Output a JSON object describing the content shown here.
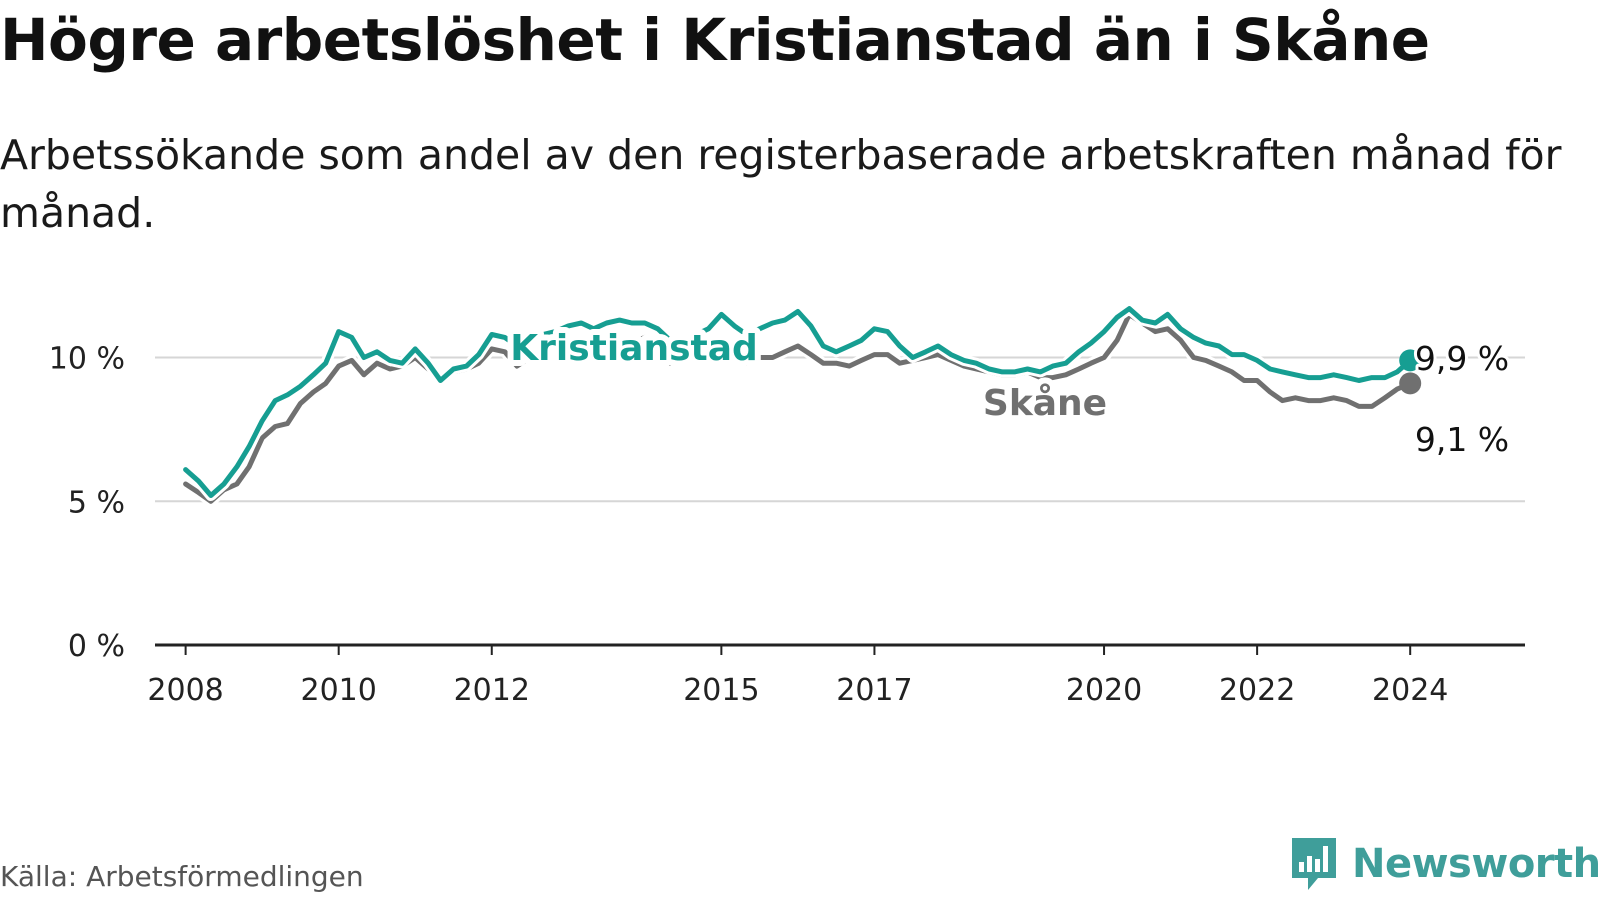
{
  "title": "Högre arbetslöshet i Kristianstad än i Skåne",
  "subtitle": "Arbetssökande som andel av den registerbaserade arbetskraften månad för månad.",
  "source": "Källa: Arbetsförmedlingen",
  "brand": {
    "name": "Newsworthy",
    "icon": "newsworthy-logo-icon",
    "color": "#3f9e9a"
  },
  "chart_data": {
    "type": "line",
    "title": "Högre arbetslöshet i Kristianstad än i Skåne",
    "xlabel": "",
    "ylabel": "",
    "xlim": [
      2007.6,
      2025.5
    ],
    "ylim": [
      0,
      12
    ],
    "grid": true,
    "y_ticks": [
      {
        "value": 0,
        "label": "0 %"
      },
      {
        "value": 5,
        "label": "5 %"
      },
      {
        "value": 10,
        "label": "10 %"
      }
    ],
    "x_ticks": [
      {
        "value": 2008,
        "label": "2008"
      },
      {
        "value": 2010,
        "label": "2010"
      },
      {
        "value": 2012,
        "label": "2012"
      },
      {
        "value": 2015,
        "label": "2015"
      },
      {
        "value": 2017,
        "label": "2017"
      },
      {
        "value": 2020,
        "label": "2020"
      },
      {
        "value": 2022,
        "label": "2022"
      },
      {
        "value": 2024,
        "label": "2024"
      }
    ],
    "series": [
      {
        "name": "Skåne",
        "label": "Skåne",
        "color": "#707070",
        "end_label": "9,1 %",
        "x": [
          2008.0,
          2008.17,
          2008.33,
          2008.5,
          2008.67,
          2008.83,
          2009.0,
          2009.17,
          2009.33,
          2009.5,
          2009.67,
          2009.83,
          2010.0,
          2010.17,
          2010.33,
          2010.5,
          2010.67,
          2010.83,
          2011.0,
          2011.17,
          2011.33,
          2011.5,
          2011.67,
          2011.83,
          2012.0,
          2012.17,
          2012.33,
          2012.5,
          2012.67,
          2012.83,
          2013.0,
          2013.17,
          2013.33,
          2013.5,
          2013.67,
          2013.83,
          2014.0,
          2014.17,
          2014.33,
          2014.5,
          2014.67,
          2014.83,
          2015.0,
          2015.17,
          2015.33,
          2015.5,
          2015.67,
          2015.83,
          2016.0,
          2016.17,
          2016.33,
          2016.5,
          2016.67,
          2016.83,
          2017.0,
          2017.17,
          2017.33,
          2017.5,
          2017.67,
          2017.83,
          2018.0,
          2018.17,
          2018.33,
          2018.5,
          2018.67,
          2018.83,
          2019.0,
          2019.17,
          2019.33,
          2019.5,
          2019.67,
          2019.83,
          2020.0,
          2020.17,
          2020.33,
          2020.5,
          2020.67,
          2020.83,
          2021.0,
          2021.17,
          2021.33,
          2021.5,
          2021.67,
          2021.83,
          2022.0,
          2022.17,
          2022.33,
          2022.5,
          2022.67,
          2022.83,
          2023.0,
          2023.17,
          2023.33,
          2023.5,
          2023.67,
          2023.83,
          2024.0
        ],
        "values": [
          5.6,
          5.3,
          5.0,
          5.4,
          5.6,
          6.2,
          7.2,
          7.6,
          7.7,
          8.4,
          8.8,
          9.1,
          9.7,
          9.9,
          9.4,
          9.8,
          9.6,
          9.7,
          10.0,
          9.6,
          9.3,
          9.5,
          9.6,
          9.8,
          10.3,
          10.2,
          9.7,
          10.0,
          10.1,
          10.2,
          10.6,
          10.5,
          10.0,
          10.3,
          10.4,
          10.5,
          10.7,
          10.6,
          9.8,
          9.9,
          10.0,
          10.0,
          10.4,
          10.2,
          9.8,
          10.0,
          10.0,
          10.2,
          10.4,
          10.1,
          9.8,
          9.8,
          9.7,
          9.9,
          10.1,
          10.1,
          9.8,
          9.9,
          10.0,
          10.1,
          9.9,
          9.7,
          9.6,
          9.5,
          9.4,
          9.4,
          9.5,
          9.3,
          9.3,
          9.4,
          9.6,
          9.8,
          10.0,
          10.6,
          11.5,
          11.2,
          10.9,
          11.0,
          10.6,
          10.0,
          9.9,
          9.7,
          9.5,
          9.2,
          9.2,
          8.8,
          8.5,
          8.6,
          8.5,
          8.5,
          8.6,
          8.5,
          8.3,
          8.3,
          8.6,
          8.9,
          9.1
        ]
      },
      {
        "name": "Kristianstad",
        "label": "Kristianstad",
        "color": "#169e92",
        "end_label": "9,9 %",
        "x": [
          2008.0,
          2008.17,
          2008.33,
          2008.5,
          2008.67,
          2008.83,
          2009.0,
          2009.17,
          2009.33,
          2009.5,
          2009.67,
          2009.83,
          2010.0,
          2010.17,
          2010.33,
          2010.5,
          2010.67,
          2010.83,
          2011.0,
          2011.17,
          2011.33,
          2011.5,
          2011.67,
          2011.83,
          2012.0,
          2012.17,
          2012.33,
          2012.5,
          2012.67,
          2012.83,
          2013.0,
          2013.17,
          2013.33,
          2013.5,
          2013.67,
          2013.83,
          2014.0,
          2014.17,
          2014.33,
          2014.5,
          2014.67,
          2014.83,
          2015.0,
          2015.17,
          2015.33,
          2015.5,
          2015.67,
          2015.83,
          2016.0,
          2016.17,
          2016.33,
          2016.5,
          2016.67,
          2016.83,
          2017.0,
          2017.17,
          2017.33,
          2017.5,
          2017.67,
          2017.83,
          2018.0,
          2018.17,
          2018.33,
          2018.5,
          2018.67,
          2018.83,
          2019.0,
          2019.17,
          2019.33,
          2019.5,
          2019.67,
          2019.83,
          2020.0,
          2020.17,
          2020.33,
          2020.5,
          2020.67,
          2020.83,
          2021.0,
          2021.17,
          2021.33,
          2021.5,
          2021.67,
          2021.83,
          2022.0,
          2022.17,
          2022.33,
          2022.5,
          2022.67,
          2022.83,
          2023.0,
          2023.17,
          2023.33,
          2023.5,
          2023.67,
          2023.83,
          2024.0
        ],
        "values": [
          6.1,
          5.7,
          5.2,
          5.6,
          6.2,
          6.9,
          7.8,
          8.5,
          8.7,
          9.0,
          9.4,
          9.8,
          10.9,
          10.7,
          10.0,
          10.2,
          9.9,
          9.8,
          10.3,
          9.8,
          9.2,
          9.6,
          9.7,
          10.1,
          10.8,
          10.7,
          10.4,
          10.6,
          10.8,
          10.9,
          11.1,
          11.2,
          11.0,
          11.2,
          11.3,
          11.2,
          11.2,
          11.0,
          10.6,
          10.6,
          10.8,
          11.0,
          11.5,
          11.1,
          10.8,
          11.0,
          11.2,
          11.3,
          11.6,
          11.1,
          10.4,
          10.2,
          10.4,
          10.6,
          11.0,
          10.9,
          10.4,
          10.0,
          10.2,
          10.4,
          10.1,
          9.9,
          9.8,
          9.6,
          9.5,
          9.5,
          9.6,
          9.5,
          9.7,
          9.8,
          10.2,
          10.5,
          10.9,
          11.4,
          11.7,
          11.3,
          11.2,
          11.5,
          11.0,
          10.7,
          10.5,
          10.4,
          10.1,
          10.1,
          9.9,
          9.6,
          9.5,
          9.4,
          9.3,
          9.3,
          9.4,
          9.3,
          9.2,
          9.3,
          9.3,
          9.5,
          9.9
        ]
      }
    ]
  }
}
